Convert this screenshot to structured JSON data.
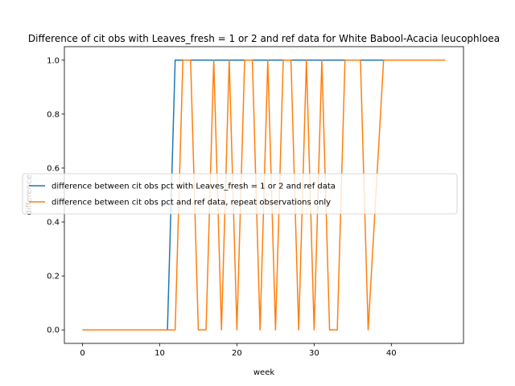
{
  "chart_data": {
    "type": "line",
    "title": "Difference of cit obs with Leaves_fresh = 1 or 2 and ref data for White Babool-Acacia leucophloea",
    "xlabel": "week",
    "ylabel": "difference",
    "xlim": [
      -2.35,
      49.35
    ],
    "ylim": [
      -0.05,
      1.05
    ],
    "xticks": [
      0,
      10,
      20,
      30,
      40
    ],
    "yticks": [
      0.0,
      0.2,
      0.4,
      0.6,
      0.8,
      1.0
    ],
    "grid": false,
    "legend_position": "center",
    "series": [
      {
        "name": "difference between cit obs pct with Leaves_fresh = 1 or 2 and ref data",
        "color": "#1f77b4",
        "x": [
          0,
          11,
          12,
          47
        ],
        "y": [
          0,
          0,
          1,
          1
        ]
      },
      {
        "name": "difference between cit obs pct and ref data, repeat observations only",
        "color": "#ff7f0e",
        "x": [
          0,
          12,
          13,
          14,
          15,
          16,
          17,
          18,
          19,
          20,
          21,
          22,
          23,
          24,
          25,
          26,
          27,
          28,
          29,
          30,
          31,
          32,
          33,
          34,
          35,
          36,
          37,
          38,
          39,
          40,
          41,
          42,
          43,
          44,
          45,
          46,
          47
        ],
        "y": [
          0,
          0,
          1,
          1,
          0,
          0,
          1,
          0,
          1,
          0,
          1,
          1,
          0,
          1,
          0,
          1,
          1,
          0,
          1,
          0,
          1,
          0,
          0,
          1,
          1,
          1,
          0,
          0.5,
          1,
          1,
          1,
          1,
          1,
          1,
          1,
          1,
          1
        ]
      }
    ]
  }
}
